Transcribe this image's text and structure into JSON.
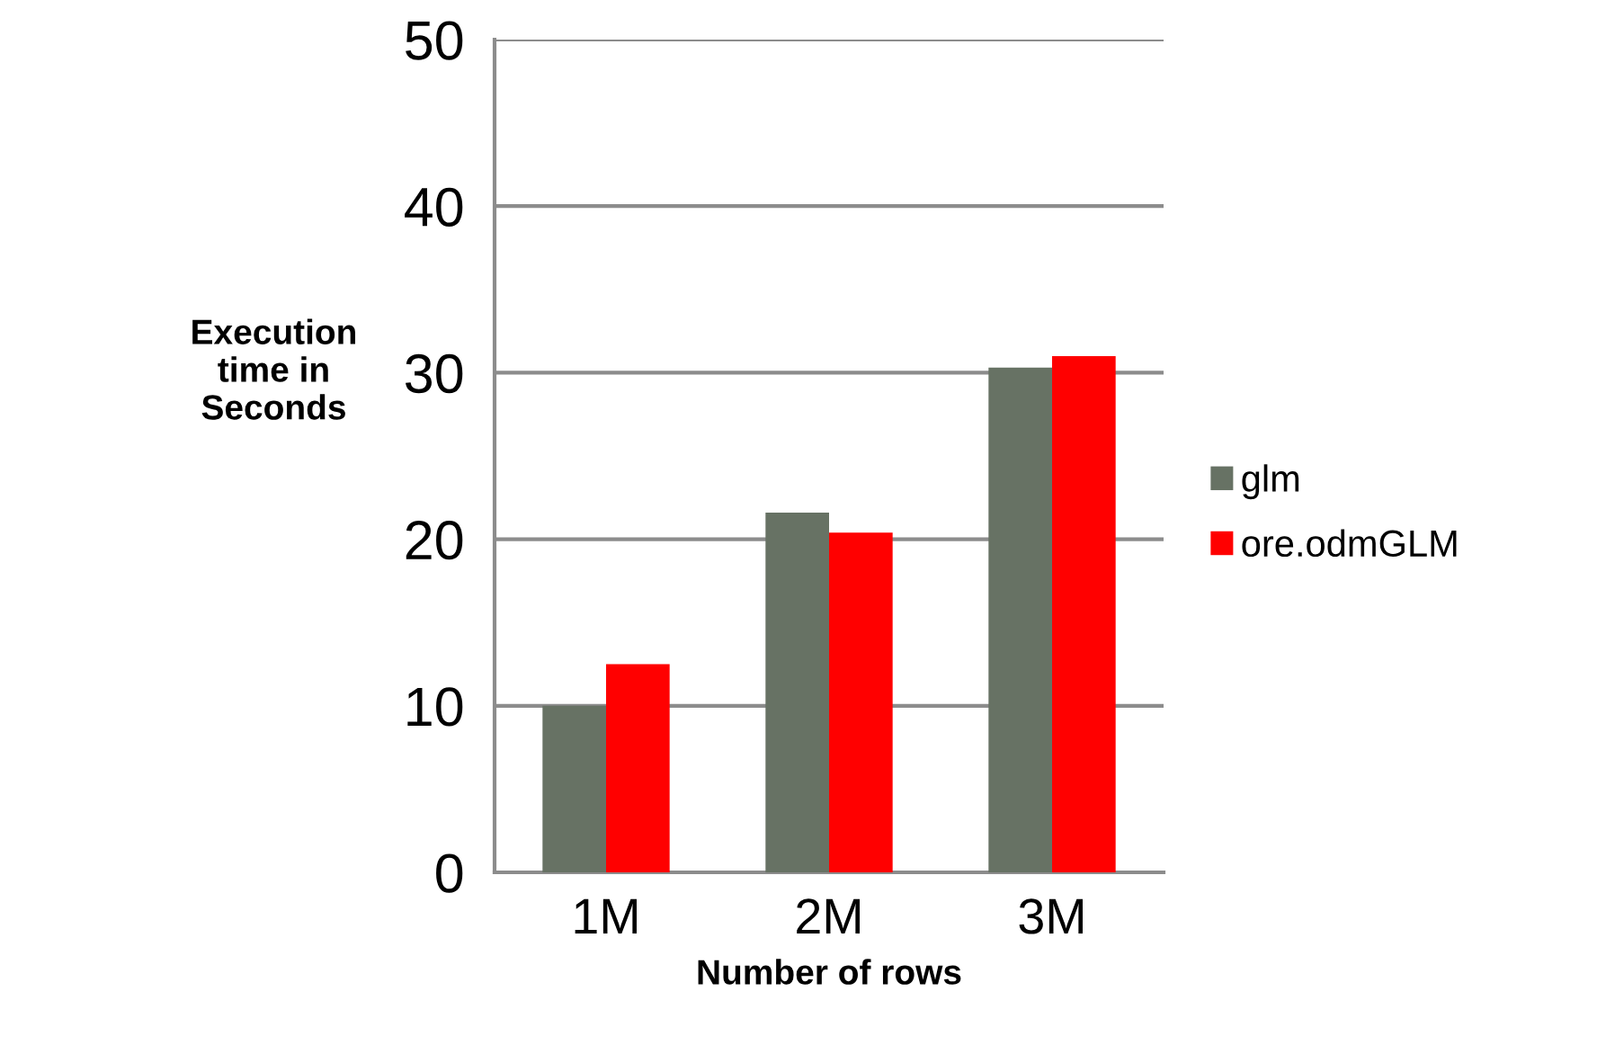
{
  "chart_data": {
    "type": "bar",
    "xlabel": "Number of rows",
    "ylabel": "Execution\ntime in\nSeconds",
    "categories": [
      "1M",
      "2M",
      "3M"
    ],
    "series": [
      {
        "name": "glm",
        "color": "#677264",
        "values": [
          10.0,
          21.6,
          30.3
        ]
      },
      {
        "name": "ore.odmGLM",
        "color": "#ff0000",
        "values": [
          12.5,
          20.4,
          31.0
        ]
      }
    ],
    "ylim": [
      0,
      50
    ],
    "yticks": [
      0,
      10,
      20,
      30,
      40,
      50
    ],
    "grid": "y",
    "legend": "right"
  }
}
